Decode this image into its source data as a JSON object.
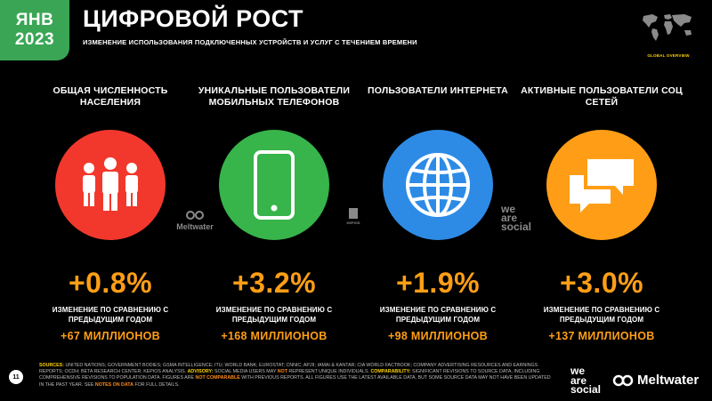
{
  "header": {
    "date_month": "ЯНВ",
    "date_year": "2023",
    "title": "ЦИФРОВОЙ РОСТ",
    "subtitle": "ИЗМЕНЕНИЕ ИСПОЛЬЗОВАНИЯ ПОДКЛЮЧЕННЫХ УСТРОЙСТВ И УСЛУГ С ТЕЧЕНИЕМ ВРЕМЕНИ",
    "badge_label": "GLOBAL OVERVIEW"
  },
  "columns": [
    {
      "label": "ОБЩАЯ ЧИСЛЕННОСТЬ НАСЕЛЕНИЯ",
      "icon": "people-icon",
      "color": "#f2382c",
      "value": "+0.8%",
      "caption": "ИЗМЕНЕНИЕ ПО СРАВНЕНИЮ С ПРЕДЫДУЩИМ ГОДОМ",
      "delta": "+67 МИЛЛИОНОВ"
    },
    {
      "label": "УНИКАЛЬНЫЕ ПОЛЬЗОВАТЕЛИ МОБИЛЬНЫХ ТЕЛЕФОНОВ",
      "icon": "mobile-phone-icon",
      "color": "#37b44a",
      "value": "+3.2%",
      "caption": "ИЗМЕНЕНИЕ ПО СРАВНЕНИЮ С ПРЕДЫДУЩИМ ГОДОМ",
      "delta": "+168 МИЛЛИОНОВ"
    },
    {
      "label": "ПОЛЬЗОВАТЕЛИ ИНТЕРНЕТА",
      "icon": "globe-icon",
      "color": "#2d8be6",
      "value": "+1.9%",
      "caption": "ИЗМЕНЕНИЕ ПО СРАВНЕНИЮ С ПРЕДЫДУЩИМ ГОДОМ",
      "delta": "+98 МИЛЛИОНОВ"
    },
    {
      "label": "АКТИВНЫЕ ПОЛЬЗОВАТЕЛИ СОЦ СЕТЕЙ",
      "icon": "chat-bubbles-icon",
      "color": "#ff9e16",
      "value": "+3.0%",
      "caption": "ИЗМЕНЕНИЕ ПО СРАВНЕНИЮ С ПРЕДЫДУЩИМ ГОДОМ",
      "delta": "+137 МИЛЛИОНОВ"
    }
  ],
  "colors": {
    "accent_green": "#3aa655",
    "value_orange": "#ff9e16",
    "label_yellow": "#ffd500"
  },
  "watermarks": {
    "meltwater": "Meltwater",
    "kepios": "KEPIOS",
    "social_line1": "we",
    "social_line2": "are",
    "social_line3": "social"
  },
  "footer": {
    "page_number": "11",
    "sources_label": "SOURCES:",
    "sources_text": " UNITED NATIONS; GOVERNMENT BODIES; GSMA INTELLIGENCE; ITU; WORLD BANK; EUROSTAT; CNNIC; APJII; IAMAI & KANTAR; CIA WORLD FACTBOOK; COMPANY ADVERTISING RESOURCES AND EARNINGS REPORTS; OCDH; BETA RESEARCH CENTER; KEPIOS ANALYSIS. ",
    "advisory_label": "ADVISORY:",
    "advisory_text": " SOCIAL MEDIA USERS MAY ",
    "advisory_not": "NOT",
    "advisory_text2": " REPRESENT UNIQUE INDIVIDUALS. ",
    "comparability_label": "COMPARABILITY:",
    "comparability_text": " SIGNIFICANT REVISIONS TO SOURCE DATA, INCLUDING COMPREHENSIVE REVISIONS TO POPULATION DATA. FIGURES ARE ",
    "not_comparable": "NOT COMPARABLE",
    "comparability_text2": " WITH PREVIOUS REPORTS. ALL FIGURES USE THE LATEST AVAILABLE DATA, BUT SOME SOURCE DATA MAY NOT HAVE BEEN UPDATED IN THE PAST YEAR. SEE ",
    "notes_link": "NOTES ON DATA",
    "notes_tail": " FOR FULL DETAILS.",
    "logo_was_1": "we",
    "logo_was_2": "are",
    "logo_was_3": "social",
    "logo_meltwater": "Meltwater"
  }
}
